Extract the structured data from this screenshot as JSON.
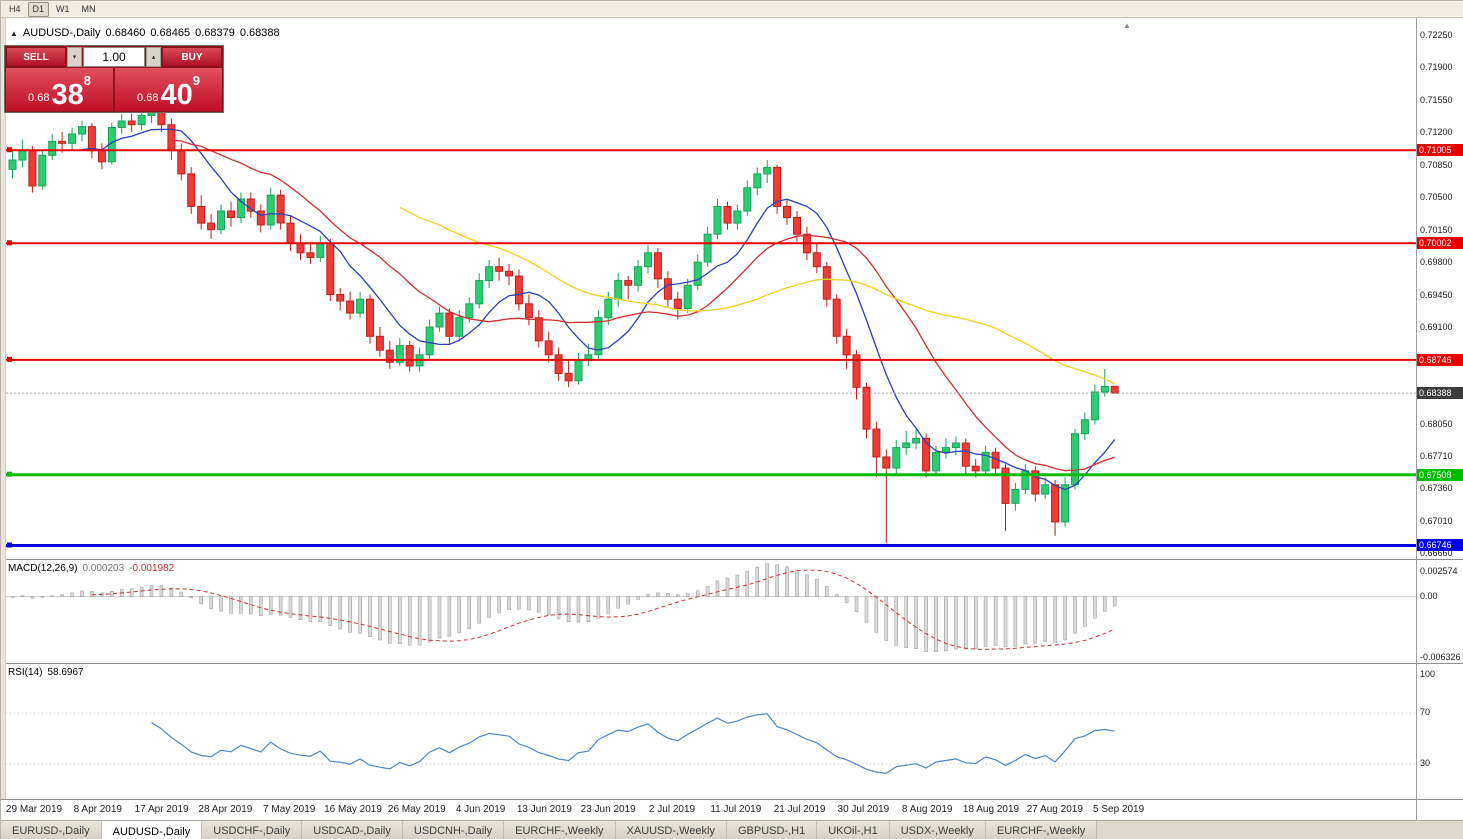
{
  "icons": {
    "symbol_marker": "▲",
    "autoscroll": "▲",
    "volume_up": "▴",
    "volume_down": "▾"
  },
  "toolbar": {
    "timeframes": [
      "H4",
      "D1",
      "W1",
      "MN"
    ],
    "active": "D1"
  },
  "chart_header": {
    "symbol": "AUDUSD-,Daily",
    "open": "0.68460",
    "high": "0.68465",
    "low": "0.68379",
    "close": "0.68388"
  },
  "trade_panel": {
    "sell_label": "SELL",
    "buy_label": "BUY",
    "volume": "1.00",
    "price_prefix": "0.68",
    "sell_big": "38",
    "sell_sup": "8",
    "buy_big": "40",
    "buy_sup": "9"
  },
  "price_axis": {
    "ticks": [
      "0.72250",
      "0.71900",
      "0.71550",
      "0.71200",
      "0.70850",
      "0.70500",
      "0.70150",
      "0.69800",
      "0.69450",
      "0.69100",
      "0.68750",
      "0.68400",
      "0.68050",
      "0.67710",
      "0.67360",
      "0.67010",
      "0.66660"
    ]
  },
  "levels": {
    "hlines": [
      {
        "label": "0.71005",
        "value": 0.71005,
        "color": "#e60000",
        "width": 2
      },
      {
        "label": "0.70002",
        "value": 0.70002,
        "color": "#e60000",
        "width": 2
      },
      {
        "label": "0.68746",
        "value": 0.68746,
        "color": "#e60000",
        "width": 2
      },
      {
        "label": "0.67508",
        "value": 0.67508,
        "color": "#00bb00",
        "width": 3
      },
      {
        "label": "0.66746",
        "value": 0.66746,
        "color": "#0000e6",
        "width": 3
      }
    ],
    "current_price": {
      "label": "0.68388",
      "value": 0.68388
    }
  },
  "macd_panel": {
    "title": "MACD(12,26,9)",
    "main_value": "0.000203",
    "signal_value": "-0.001982",
    "ylim": [
      -0.007,
      0.0038
    ],
    "axis": [
      {
        "label": "0.002574",
        "value": 0.002574
      },
      {
        "label": "0.00",
        "value": 0
      },
      {
        "label": "-0.006326",
        "value": -0.006326
      }
    ]
  },
  "rsi_panel": {
    "title": "RSI(14)",
    "value": "58.6967",
    "levels": [
      70,
      30
    ],
    "axis": [
      {
        "label": "100",
        "value": 100
      },
      {
        "label": "70",
        "value": 70
      },
      {
        "label": "30",
        "value": 30
      }
    ]
  },
  "date_axis": {
    "labels": [
      "29 Mar 2019",
      "8 Apr 2019",
      "17 Apr 2019",
      "28 Apr 2019",
      "7 May 2019",
      "16 May 2019",
      "26 May 2019",
      "4 Jun 2019",
      "13 Jun 2019",
      "23 Jun 2019",
      "2 Jul 2019",
      "11 Jul 2019",
      "21 Jul 2019",
      "30 Jul 2019",
      "8 Aug 2019",
      "18 Aug 2019",
      "27 Aug 2019",
      "5 Sep 2019"
    ]
  },
  "tabbar": {
    "tabs": [
      {
        "label": "EURUSD-,Daily",
        "active": false
      },
      {
        "label": "AUDUSD-,Daily",
        "active": true
      },
      {
        "label": "USDCHF-,Daily",
        "active": false
      },
      {
        "label": "USDCAD-,Daily",
        "active": false
      },
      {
        "label": "USDCNH-,Daily",
        "active": false
      },
      {
        "label": "EURCHF-,Weekly",
        "active": false
      },
      {
        "label": "XAUUSD-,Weekly",
        "active": false
      },
      {
        "label": "GBPUSD-,H1",
        "active": false
      },
      {
        "label": "UKOil-,H1",
        "active": false
      },
      {
        "label": "USDX-,Weekly",
        "active": false
      },
      {
        "label": "EURCHF-,Weekly",
        "active": false
      }
    ]
  },
  "chart_data": {
    "type": "candlestick",
    "symbol": "AUDUSD",
    "timeframe": "Daily",
    "ylim": [
      0.666,
      0.7243
    ],
    "colors": {
      "up": "#2ecc71",
      "up_stroke": "#17a35b",
      "down": "#ef3b36",
      "down_stroke": "#bf1f1b",
      "ma_fast": "#2a3fbe",
      "ma_mid": "#cf3030",
      "ma_slow": "#efd020",
      "macd_hist": "#d9d9d9",
      "macd_hist_stroke": "#969696",
      "macd_signal": "#cf3030",
      "rsi": "#4f86c6"
    },
    "overlays": [
      {
        "type": "sma",
        "period": 8,
        "color_key": "ma_fast"
      },
      {
        "type": "sma",
        "period": 17,
        "color_key": "ma_mid"
      },
      {
        "type": "sma",
        "period": 40,
        "color_key": "ma_slow"
      }
    ],
    "indicators": [
      {
        "type": "macd",
        "fast": 12,
        "slow": 26,
        "signal": 9
      },
      {
        "type": "rsi",
        "period": 14
      }
    ],
    "candles": [
      [
        0.708,
        0.7102,
        0.707,
        0.709
      ],
      [
        0.709,
        0.7112,
        0.7082,
        0.71
      ],
      [
        0.71,
        0.7105,
        0.7055,
        0.7062
      ],
      [
        0.7062,
        0.71,
        0.7058,
        0.7095
      ],
      [
        0.7095,
        0.7118,
        0.709,
        0.711
      ],
      [
        0.711,
        0.712,
        0.7098,
        0.7108
      ],
      [
        0.7108,
        0.7125,
        0.71,
        0.7118
      ],
      [
        0.7118,
        0.7132,
        0.711,
        0.7126
      ],
      [
        0.7126,
        0.713,
        0.7092,
        0.71
      ],
      [
        0.71,
        0.7108,
        0.708,
        0.7088
      ],
      [
        0.7088,
        0.713,
        0.7085,
        0.7125
      ],
      [
        0.7125,
        0.714,
        0.7118,
        0.7132
      ],
      [
        0.7132,
        0.714,
        0.712,
        0.7128
      ],
      [
        0.7128,
        0.7145,
        0.7122,
        0.7138
      ],
      [
        0.7138,
        0.7152,
        0.713,
        0.7145
      ],
      [
        0.7145,
        0.715,
        0.712,
        0.7128
      ],
      [
        0.7128,
        0.7135,
        0.709,
        0.71
      ],
      [
        0.71,
        0.7108,
        0.7068,
        0.7075
      ],
      [
        0.7075,
        0.7082,
        0.7032,
        0.704
      ],
      [
        0.704,
        0.7052,
        0.7015,
        0.7022
      ],
      [
        0.7022,
        0.7032,
        0.7005,
        0.7015
      ],
      [
        0.7015,
        0.7042,
        0.701,
        0.7035
      ],
      [
        0.7035,
        0.7045,
        0.7018,
        0.7028
      ],
      [
        0.7028,
        0.7055,
        0.7022,
        0.7048
      ],
      [
        0.7048,
        0.7055,
        0.7028,
        0.7035
      ],
      [
        0.7035,
        0.7042,
        0.7012,
        0.702
      ],
      [
        0.702,
        0.706,
        0.7015,
        0.7052
      ],
      [
        0.7052,
        0.7058,
        0.7015,
        0.7022
      ],
      [
        0.7022,
        0.703,
        0.6992,
        0.7
      ],
      [
        0.7,
        0.701,
        0.6982,
        0.699
      ],
      [
        0.699,
        0.7002,
        0.6978,
        0.6985
      ],
      [
        0.6985,
        0.7008,
        0.698,
        0.7
      ],
      [
        0.7,
        0.7005,
        0.6938,
        0.6945
      ],
      [
        0.6945,
        0.6952,
        0.6928,
        0.6938
      ],
      [
        0.6938,
        0.6948,
        0.6918,
        0.6925
      ],
      [
        0.6925,
        0.6948,
        0.692,
        0.694
      ],
      [
        0.694,
        0.6945,
        0.6892,
        0.69
      ],
      [
        0.69,
        0.691,
        0.6878,
        0.6885
      ],
      [
        0.6885,
        0.6895,
        0.6865,
        0.6872
      ],
      [
        0.6872,
        0.6898,
        0.6868,
        0.689
      ],
      [
        0.689,
        0.6895,
        0.6862,
        0.6868
      ],
      [
        0.6868,
        0.6888,
        0.6862,
        0.688
      ],
      [
        0.688,
        0.6918,
        0.6875,
        0.691
      ],
      [
        0.691,
        0.6932,
        0.6905,
        0.6925
      ],
      [
        0.6925,
        0.693,
        0.6892,
        0.69
      ],
      [
        0.69,
        0.6928,
        0.6895,
        0.692
      ],
      [
        0.692,
        0.6942,
        0.6915,
        0.6935
      ],
      [
        0.6935,
        0.6968,
        0.693,
        0.696
      ],
      [
        0.696,
        0.6982,
        0.6952,
        0.6975
      ],
      [
        0.6975,
        0.6985,
        0.696,
        0.697
      ],
      [
        0.697,
        0.6978,
        0.6955,
        0.6965
      ],
      [
        0.6965,
        0.6972,
        0.6928,
        0.6935
      ],
      [
        0.6935,
        0.6945,
        0.6912,
        0.692
      ],
      [
        0.692,
        0.6928,
        0.6888,
        0.6895
      ],
      [
        0.6895,
        0.6905,
        0.6872,
        0.688
      ],
      [
        0.688,
        0.6888,
        0.6852,
        0.686
      ],
      [
        0.686,
        0.6875,
        0.6845,
        0.6852
      ],
      [
        0.6852,
        0.6882,
        0.6848,
        0.6875
      ],
      [
        0.6875,
        0.6892,
        0.6868,
        0.688
      ],
      [
        0.688,
        0.6928,
        0.6875,
        0.692
      ],
      [
        0.692,
        0.6948,
        0.6912,
        0.694
      ],
      [
        0.694,
        0.6968,
        0.6932,
        0.696
      ],
      [
        0.696,
        0.6965,
        0.694,
        0.6955
      ],
      [
        0.6955,
        0.6982,
        0.6948,
        0.6975
      ],
      [
        0.6975,
        0.6998,
        0.6968,
        0.699
      ],
      [
        0.699,
        0.6995,
        0.6952,
        0.6962
      ],
      [
        0.6962,
        0.697,
        0.6932,
        0.694
      ],
      [
        0.694,
        0.6948,
        0.6918,
        0.693
      ],
      [
        0.693,
        0.6962,
        0.6925,
        0.6955
      ],
      [
        0.6955,
        0.6988,
        0.695,
        0.698
      ],
      [
        0.698,
        0.7018,
        0.6975,
        0.701
      ],
      [
        0.701,
        0.7048,
        0.7005,
        0.704
      ],
      [
        0.704,
        0.7045,
        0.7015,
        0.7022
      ],
      [
        0.7022,
        0.7042,
        0.7015,
        0.7035
      ],
      [
        0.7035,
        0.7068,
        0.703,
        0.706
      ],
      [
        0.706,
        0.7082,
        0.7052,
        0.7075
      ],
      [
        0.7075,
        0.709,
        0.7065,
        0.7082
      ],
      [
        0.7082,
        0.7085,
        0.7032,
        0.704
      ],
      [
        0.704,
        0.7048,
        0.702,
        0.7028
      ],
      [
        0.7028,
        0.7035,
        0.7002,
        0.701
      ],
      [
        0.701,
        0.7018,
        0.6982,
        0.699
      ],
      [
        0.699,
        0.7,
        0.6968,
        0.6975
      ],
      [
        0.6975,
        0.698,
        0.6932,
        0.694
      ],
      [
        0.694,
        0.6945,
        0.6892,
        0.69
      ],
      [
        0.69,
        0.6908,
        0.6865,
        0.688
      ],
      [
        0.688,
        0.6885,
        0.6832,
        0.6845
      ],
      [
        0.6845,
        0.685,
        0.679,
        0.68
      ],
      [
        0.68,
        0.6808,
        0.6748,
        0.677
      ],
      [
        0.677,
        0.6778,
        0.6677,
        0.6758
      ],
      [
        0.6758,
        0.6788,
        0.675,
        0.678
      ],
      [
        0.678,
        0.6798,
        0.6772,
        0.6785
      ],
      [
        0.6785,
        0.68,
        0.6778,
        0.679
      ],
      [
        0.679,
        0.6795,
        0.6748,
        0.6755
      ],
      [
        0.6755,
        0.6782,
        0.675,
        0.6775
      ],
      [
        0.6775,
        0.679,
        0.6768,
        0.678
      ],
      [
        0.678,
        0.6792,
        0.6772,
        0.6785
      ],
      [
        0.6785,
        0.679,
        0.6752,
        0.676
      ],
      [
        0.676,
        0.6768,
        0.6748,
        0.6755
      ],
      [
        0.6755,
        0.6782,
        0.675,
        0.6775
      ],
      [
        0.6775,
        0.678,
        0.675,
        0.6758
      ],
      [
        0.6758,
        0.6762,
        0.669,
        0.672
      ],
      [
        0.672,
        0.6742,
        0.6712,
        0.6735
      ],
      [
        0.6735,
        0.6762,
        0.673,
        0.6755
      ],
      [
        0.6755,
        0.676,
        0.6722,
        0.673
      ],
      [
        0.673,
        0.6748,
        0.6725,
        0.674
      ],
      [
        0.674,
        0.6745,
        0.6685,
        0.67
      ],
      [
        0.67,
        0.6748,
        0.6695,
        0.674
      ],
      [
        0.674,
        0.68,
        0.6735,
        0.6795
      ],
      [
        0.6795,
        0.6818,
        0.6788,
        0.681
      ],
      [
        0.681,
        0.6848,
        0.6805,
        0.684
      ],
      [
        0.684,
        0.6865,
        0.6835,
        0.6846
      ],
      [
        0.6846,
        0.68465,
        0.68379,
        0.68388
      ]
    ]
  }
}
